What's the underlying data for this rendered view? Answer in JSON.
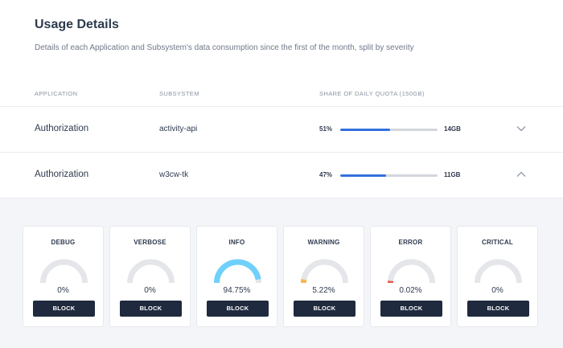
{
  "header": {
    "title": "Usage Details",
    "subtitle": "Details of each Application and Subsystem's data consumption since the first of the month, split by severity"
  },
  "table": {
    "columns": [
      "APPLICATION",
      "SUBSYSTEM",
      "SHARE OF DAILY QUOTA (150GB)"
    ],
    "rows": [
      {
        "application": "Authorization",
        "subsystem": "activity-api",
        "share_label": "51%",
        "share": 0.51,
        "size": "14GB",
        "expanded": false
      },
      {
        "application": "Authorization",
        "subsystem": "w3cw-tk",
        "share_label": "47%",
        "share": 0.47,
        "size": "11GB",
        "expanded": true
      }
    ]
  },
  "severity": {
    "button_label": "BLOCK",
    "cards": [
      {
        "label": "DEBUG",
        "value_label": "0%",
        "value": 0.0,
        "color": "#5ac8fa"
      },
      {
        "label": "VERBOSE",
        "value_label": "0%",
        "value": 0.0,
        "color": "#5ac8fa"
      },
      {
        "label": "INFO",
        "value_label": "94.75%",
        "value": 0.9475,
        "color": "#6fd0fb"
      },
      {
        "label": "WARNING",
        "value_label": "5.22%",
        "value": 0.0522,
        "color": "#f5b94c"
      },
      {
        "label": "ERROR",
        "value_label": "0.02%",
        "value": 0.0002,
        "color": "#e8584f"
      },
      {
        "label": "CRITICAL",
        "value_label": "0%",
        "value": 0.0,
        "color": "#e8584f"
      }
    ]
  },
  "colors": {
    "accent": "#3370df",
    "track": "#e4e6ea",
    "button": "#1f2a3e"
  }
}
